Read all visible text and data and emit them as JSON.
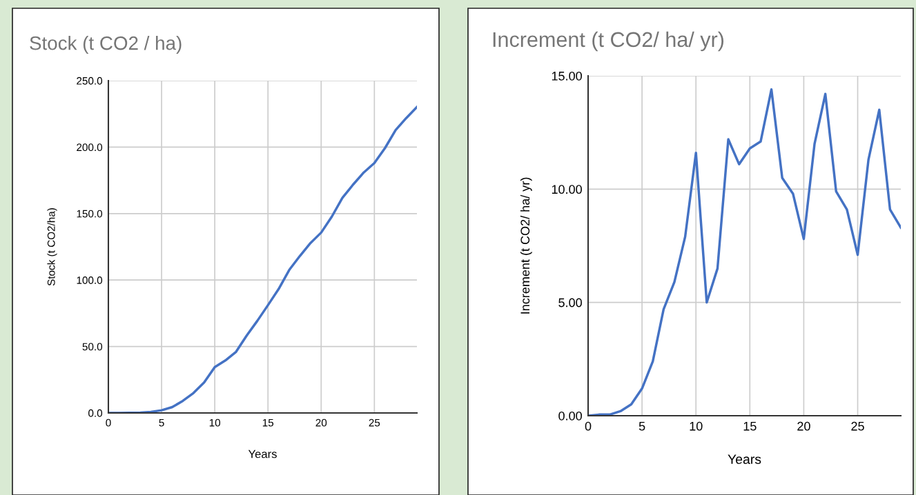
{
  "chart_data": [
    {
      "type": "line",
      "title": "Stock (t CO2 / ha)",
      "xlabel": "Years",
      "ylabel": "Stock (t CO2/ha)",
      "x": [
        0,
        1,
        2,
        3,
        4,
        5,
        6,
        7,
        8,
        9,
        10,
        11,
        12,
        13,
        14,
        15,
        16,
        17,
        18,
        19,
        20,
        21,
        22,
        23,
        24,
        25,
        26,
        27,
        28,
        29
      ],
      "series": [
        {
          "color": "#4472c4",
          "values": [
            0,
            0,
            0.1,
            0.3,
            0.8,
            2.0,
            4.4,
            9.1,
            15.0,
            22.9,
            34.5,
            39.5,
            46.0,
            58.2,
            69.3,
            81.1,
            93.2,
            107.6,
            118.1,
            127.9,
            135.7,
            147.7,
            161.9,
            171.8,
            180.9,
            188.0,
            199.3,
            212.8,
            221.9,
            230.2
          ]
        }
      ],
      "xlim": [
        0,
        29
      ],
      "xticks": [
        0,
        5,
        10,
        15,
        20,
        25
      ],
      "ylim": [
        0,
        250
      ],
      "yticks": [
        {
          "value": 0,
          "label": "0.0"
        },
        {
          "value": 50,
          "label": "50.0"
        },
        {
          "value": 100,
          "label": "100.0"
        },
        {
          "value": 150,
          "label": "150.0"
        },
        {
          "value": 200,
          "label": "200.0"
        },
        {
          "value": 250,
          "label": "250.0"
        }
      ],
      "grid": true,
      "marker": "none",
      "line_style": "solid"
    },
    {
      "type": "line",
      "title": "Increment (t CO2/ ha/ yr)",
      "xlabel": "Years",
      "ylabel": "Increment (t CO2/ ha/ yr)",
      "x": [
        0,
        1,
        2,
        3,
        4,
        5,
        6,
        7,
        8,
        9,
        10,
        11,
        12,
        13,
        14,
        15,
        16,
        17,
        18,
        19,
        20,
        21,
        22,
        23,
        24,
        25,
        26,
        27,
        28,
        29
      ],
      "series": [
        {
          "color": "#4472c4",
          "values": [
            0,
            0.05,
            0.05,
            0.2,
            0.5,
            1.2,
            2.4,
            4.7,
            5.9,
            7.9,
            11.6,
            5.0,
            6.5,
            12.2,
            11.1,
            11.8,
            12.1,
            14.4,
            10.5,
            9.8,
            7.8,
            12.0,
            14.2,
            9.9,
            9.1,
            7.1,
            11.3,
            13.5,
            9.1,
            8.3
          ]
        }
      ],
      "xlim": [
        0,
        29
      ],
      "xticks": [
        0,
        5,
        10,
        15,
        20,
        25
      ],
      "ylim": [
        0,
        15
      ],
      "yticks": [
        {
          "value": 0,
          "label": "0.00"
        },
        {
          "value": 5,
          "label": "5.00"
        },
        {
          "value": 10,
          "label": "10.00"
        },
        {
          "value": 15,
          "label": "15.00"
        }
      ],
      "grid": true,
      "marker": "none",
      "line_style": "solid"
    }
  ]
}
